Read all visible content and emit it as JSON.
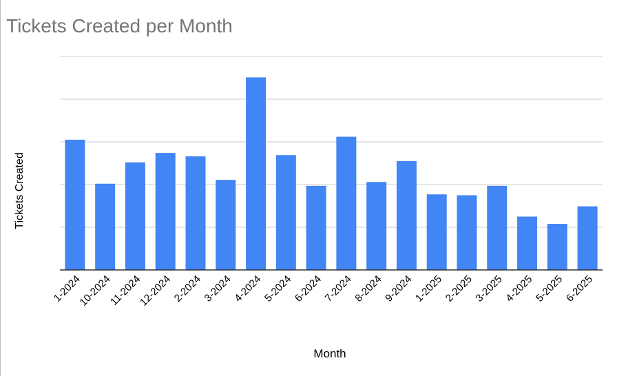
{
  "chart_data": {
    "type": "bar",
    "title": "Tickets Created per Month",
    "xlabel": "Month",
    "ylabel": "Tickets Created",
    "categories": [
      "1-2024",
      "10-2024",
      "11-2024",
      "12-2024",
      "2-2024",
      "3-2024",
      "4-2024",
      "5-2024",
      "6-2024",
      "7-2024",
      "8-2024",
      "9-2024",
      "1-2025",
      "2-2025",
      "3-2025",
      "4-2025",
      "5-2025",
      "6-2025"
    ],
    "values": [
      3.05,
      2.02,
      2.52,
      2.74,
      2.66,
      2.11,
      4.51,
      2.69,
      1.97,
      3.12,
      2.06,
      2.55,
      1.77,
      1.75,
      1.97,
      1.25,
      1.08,
      1.49
    ],
    "ylim": [
      0,
      5
    ],
    "y_tick_labels_shown": false,
    "grid": true,
    "colors": {
      "bar": "#4285f4",
      "grid": "#cccccc",
      "baseline": "#333333",
      "title": "#757575"
    }
  }
}
